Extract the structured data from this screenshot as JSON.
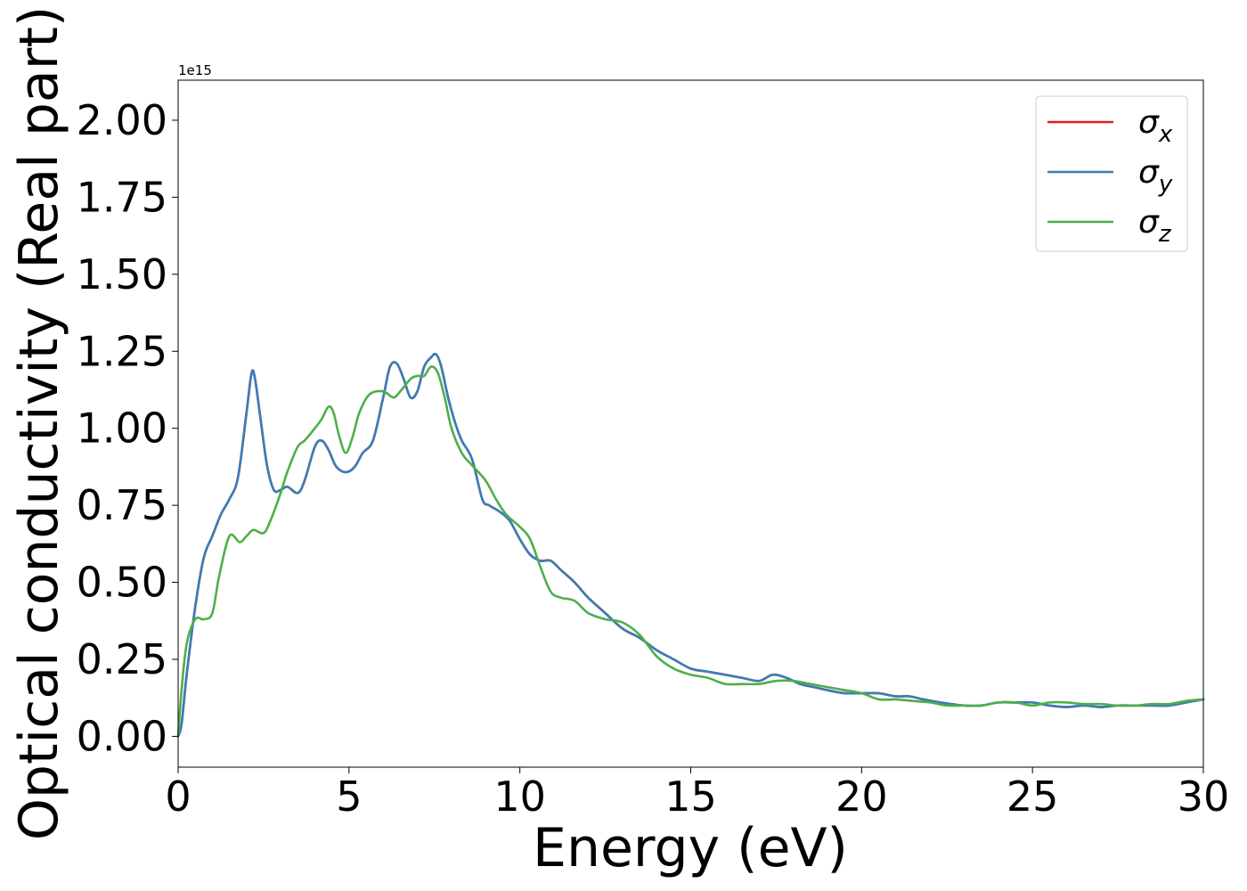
{
  "chart_data": {
    "type": "line",
    "title": "",
    "xlabel": "Energy (eV)",
    "ylabel": "Optical conductivity (Real part)",
    "y_offset_text": "1e15",
    "xlim": [
      0,
      30
    ],
    "ylim": [
      -0.1,
      2.13
    ],
    "xticks": [
      0,
      5,
      10,
      15,
      20,
      25,
      30
    ],
    "xtick_labels": [
      "0",
      "5",
      "10",
      "15",
      "20",
      "25",
      "30"
    ],
    "yticks": [
      0,
      0.25,
      0.5,
      0.75,
      1.0,
      1.25,
      1.5,
      1.75,
      2.0
    ],
    "ytick_labels": [
      "0.00",
      "0.25",
      "0.50",
      "0.75",
      "1.00",
      "1.25",
      "1.50",
      "1.75",
      "2.00"
    ],
    "grid": false,
    "legend_position": "top-right",
    "series": [
      {
        "name": "σx",
        "legend_base": "σ",
        "legend_sub": "x",
        "color": "#e41a1c",
        "x": [
          0,
          0.1,
          0.25,
          0.5,
          0.75,
          1.0,
          1.25,
          1.5,
          1.75,
          2.0,
          2.15,
          2.25,
          2.4,
          2.6,
          2.8,
          3.0,
          3.2,
          3.5,
          3.7,
          4.0,
          4.2,
          4.4,
          4.6,
          4.8,
          5.0,
          5.2,
          5.4,
          5.7,
          6.0,
          6.2,
          6.4,
          6.6,
          6.8,
          7.0,
          7.2,
          7.4,
          7.55,
          7.7,
          7.9,
          8.1,
          8.3,
          8.6,
          8.9,
          9.1,
          9.4,
          9.7,
          10.0,
          10.3,
          10.6,
          10.9,
          11.2,
          11.6,
          12.0,
          12.5,
          13.0,
          13.5,
          14.0,
          14.5,
          15.0,
          15.5,
          16.0,
          16.5,
          17.0,
          17.4,
          17.8,
          18.2,
          18.6,
          19.0,
          19.5,
          20.0,
          20.5,
          21.0,
          21.4,
          21.8,
          22.3,
          23.0,
          23.5,
          24.0,
          24.5,
          25.0,
          25.5,
          26.0,
          26.5,
          27.0,
          27.5,
          28.0,
          28.5,
          29.0,
          29.5,
          30.0
        ],
        "y": [
          0,
          0.04,
          0.2,
          0.42,
          0.58,
          0.65,
          0.72,
          0.77,
          0.84,
          1.05,
          1.18,
          1.16,
          1.04,
          0.88,
          0.8,
          0.8,
          0.81,
          0.79,
          0.83,
          0.94,
          0.96,
          0.93,
          0.88,
          0.86,
          0.86,
          0.88,
          0.92,
          0.96,
          1.1,
          1.2,
          1.21,
          1.16,
          1.1,
          1.12,
          1.2,
          1.23,
          1.24,
          1.2,
          1.1,
          1.02,
          0.96,
          0.9,
          0.77,
          0.75,
          0.73,
          0.7,
          0.64,
          0.59,
          0.57,
          0.57,
          0.54,
          0.5,
          0.45,
          0.4,
          0.35,
          0.32,
          0.28,
          0.25,
          0.22,
          0.21,
          0.2,
          0.19,
          0.18,
          0.2,
          0.19,
          0.17,
          0.16,
          0.15,
          0.14,
          0.14,
          0.14,
          0.13,
          0.13,
          0.12,
          0.11,
          0.1,
          0.1,
          0.11,
          0.11,
          0.11,
          0.1,
          0.095,
          0.1,
          0.095,
          0.1,
          0.1,
          0.1,
          0.1,
          0.11,
          0.12
        ]
      },
      {
        "name": "σy",
        "legend_base": "σ",
        "legend_sub": "y",
        "color": "#377eb8",
        "x": [
          0,
          0.1,
          0.25,
          0.5,
          0.75,
          1.0,
          1.25,
          1.5,
          1.75,
          2.0,
          2.15,
          2.25,
          2.4,
          2.6,
          2.8,
          3.0,
          3.2,
          3.5,
          3.7,
          4.0,
          4.2,
          4.4,
          4.6,
          4.8,
          5.0,
          5.2,
          5.4,
          5.7,
          6.0,
          6.2,
          6.4,
          6.6,
          6.8,
          7.0,
          7.2,
          7.4,
          7.55,
          7.7,
          7.9,
          8.1,
          8.3,
          8.6,
          8.9,
          9.1,
          9.4,
          9.7,
          10.0,
          10.3,
          10.6,
          10.9,
          11.2,
          11.6,
          12.0,
          12.5,
          13.0,
          13.5,
          14.0,
          14.5,
          15.0,
          15.5,
          16.0,
          16.5,
          17.0,
          17.4,
          17.8,
          18.2,
          18.6,
          19.0,
          19.5,
          20.0,
          20.5,
          21.0,
          21.4,
          21.8,
          22.3,
          23.0,
          23.5,
          24.0,
          24.5,
          25.0,
          25.5,
          26.0,
          26.5,
          27.0,
          27.5,
          28.0,
          28.5,
          29.0,
          29.5,
          30.0
        ],
        "y": [
          0,
          0.04,
          0.2,
          0.42,
          0.58,
          0.65,
          0.72,
          0.77,
          0.84,
          1.05,
          1.18,
          1.16,
          1.04,
          0.88,
          0.8,
          0.8,
          0.81,
          0.79,
          0.83,
          0.94,
          0.96,
          0.93,
          0.88,
          0.86,
          0.86,
          0.88,
          0.92,
          0.96,
          1.1,
          1.2,
          1.21,
          1.16,
          1.1,
          1.12,
          1.2,
          1.23,
          1.24,
          1.2,
          1.1,
          1.02,
          0.96,
          0.9,
          0.77,
          0.75,
          0.73,
          0.7,
          0.64,
          0.59,
          0.57,
          0.57,
          0.54,
          0.5,
          0.45,
          0.4,
          0.35,
          0.32,
          0.28,
          0.25,
          0.22,
          0.21,
          0.2,
          0.19,
          0.18,
          0.2,
          0.19,
          0.17,
          0.16,
          0.15,
          0.14,
          0.14,
          0.14,
          0.13,
          0.13,
          0.12,
          0.11,
          0.1,
          0.1,
          0.11,
          0.11,
          0.11,
          0.1,
          0.095,
          0.1,
          0.095,
          0.1,
          0.1,
          0.1,
          0.1,
          0.11,
          0.12
        ]
      },
      {
        "name": "σz",
        "legend_base": "σ",
        "legend_sub": "z",
        "color": "#4daf4a",
        "x": [
          0,
          0.1,
          0.25,
          0.5,
          0.75,
          1.0,
          1.2,
          1.5,
          1.8,
          2.0,
          2.2,
          2.5,
          2.7,
          3.0,
          3.2,
          3.5,
          3.7,
          4.0,
          4.2,
          4.4,
          4.55,
          4.7,
          4.9,
          5.1,
          5.3,
          5.6,
          6.0,
          6.3,
          6.5,
          6.8,
          7.0,
          7.2,
          7.4,
          7.6,
          7.8,
          8.0,
          8.3,
          8.6,
          9.0,
          9.3,
          9.6,
          10.0,
          10.3,
          10.6,
          10.9,
          11.2,
          11.6,
          12.0,
          12.5,
          13.0,
          13.5,
          14.0,
          14.5,
          15.0,
          15.5,
          16.0,
          16.5,
          17.0,
          17.5,
          18.0,
          18.5,
          19.0,
          19.5,
          20.0,
          20.5,
          21.0,
          21.5,
          22.0,
          22.5,
          23.0,
          23.5,
          24.0,
          24.5,
          25.0,
          25.5,
          26.0,
          26.5,
          27.0,
          27.5,
          28.0,
          28.5,
          29.0,
          29.5,
          30.0
        ],
        "y": [
          0,
          0.15,
          0.3,
          0.38,
          0.38,
          0.4,
          0.52,
          0.65,
          0.63,
          0.65,
          0.67,
          0.66,
          0.7,
          0.79,
          0.86,
          0.94,
          0.96,
          1.0,
          1.03,
          1.07,
          1.05,
          0.98,
          0.92,
          0.97,
          1.05,
          1.11,
          1.12,
          1.1,
          1.12,
          1.16,
          1.17,
          1.17,
          1.2,
          1.18,
          1.1,
          1.0,
          0.92,
          0.88,
          0.83,
          0.77,
          0.72,
          0.68,
          0.64,
          0.55,
          0.47,
          0.45,
          0.44,
          0.4,
          0.38,
          0.37,
          0.33,
          0.26,
          0.22,
          0.2,
          0.19,
          0.17,
          0.17,
          0.17,
          0.18,
          0.18,
          0.17,
          0.16,
          0.15,
          0.14,
          0.12,
          0.12,
          0.115,
          0.11,
          0.1,
          0.1,
          0.1,
          0.11,
          0.11,
          0.1,
          0.11,
          0.11,
          0.105,
          0.105,
          0.1,
          0.1,
          0.105,
          0.105,
          0.115,
          0.12
        ]
      }
    ]
  }
}
